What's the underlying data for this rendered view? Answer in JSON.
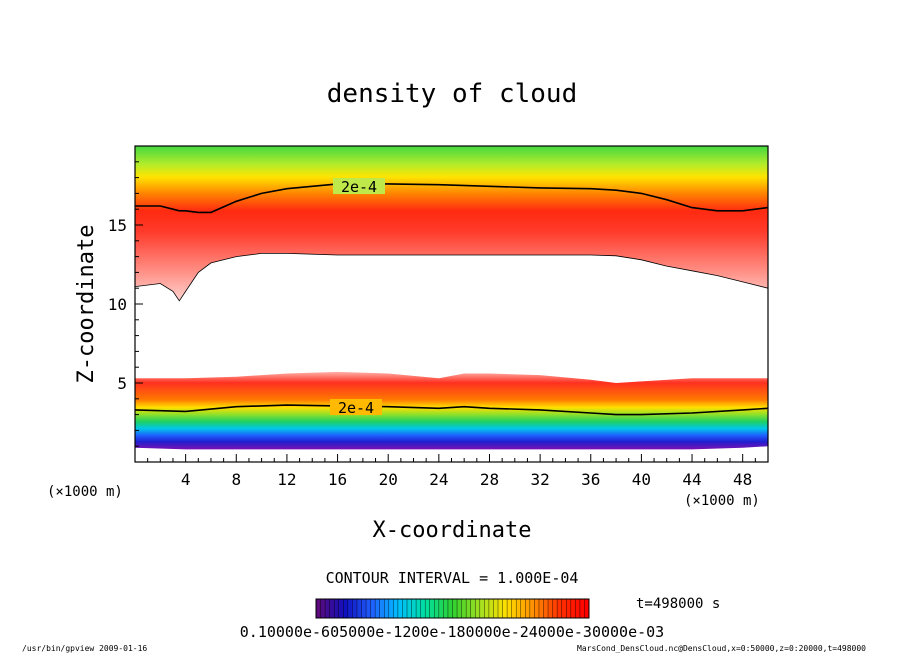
{
  "chart_data": {
    "type": "heatmap",
    "title": "density of cloud",
    "xlabel": "X-coordinate",
    "ylabel": "Z-coordinate",
    "x_unit": "(×1000 m)",
    "y_unit": "(×1000 m)",
    "xlim": [
      0,
      50
    ],
    "ylim": [
      0,
      20
    ],
    "x_ticks": [
      "4",
      "8",
      "12",
      "16",
      "20",
      "24",
      "28",
      "32",
      "36",
      "40",
      "44",
      "48"
    ],
    "y_ticks": [
      "5",
      "10",
      "15"
    ],
    "contour_labels": [
      "2e-4",
      "2e-4"
    ],
    "contour_interval": "CONTOUR INTERVAL = 1.000E-04",
    "time_label": "t=498000 s",
    "colorbar_text": "0.10000e-605000e-1200e-180000e-24000e-30000e-03",
    "colorbar_colors": [
      "#5a0a7a",
      "#1010c0",
      "#2060ff",
      "#00c0ff",
      "#00e0a0",
      "#30d030",
      "#a0e020",
      "#ffe000",
      "#ff9000",
      "#ff3000",
      "#ff0000"
    ],
    "footer_left": "/usr/bin/gpview   2009-01-16",
    "footer_right": "MarsCond_DensCloud.nc@DensCloud,x=0:50000,z=0:20000,t=498000",
    "upper_layer": {
      "x": [
        0,
        2,
        3,
        3.5,
        4,
        5,
        6,
        8,
        10,
        12,
        16,
        20,
        24,
        28,
        32,
        36,
        38,
        40,
        42,
        44,
        46,
        48,
        50
      ],
      "top_contour": [
        16.2,
        16.2,
        16.0,
        15.9,
        15.9,
        15.8,
        15.8,
        16.5,
        17.0,
        17.3,
        17.6,
        17.6,
        17.55,
        17.45,
        17.35,
        17.3,
        17.2,
        17.0,
        16.6,
        16.1,
        15.9,
        15.9,
        16.1
      ],
      "bottom": [
        11.1,
        11.3,
        10.8,
        10.2,
        10.8,
        12.0,
        12.6,
        13.0,
        13.2,
        13.2,
        13.1,
        13.1,
        13.1,
        13.1,
        13.1,
        13.1,
        13.05,
        12.8,
        12.4,
        12.1,
        11.8,
        11.4,
        11.0
      ]
    },
    "lower_layer": {
      "x": [
        0,
        4,
        8,
        12,
        16,
        20,
        24,
        26,
        28,
        32,
        36,
        38,
        40,
        44,
        48,
        50
      ],
      "top": [
        5.3,
        5.3,
        5.4,
        5.6,
        5.7,
        5.6,
        5.3,
        5.6,
        5.6,
        5.5,
        5.2,
        5.0,
        5.1,
        5.3,
        5.3,
        5.3
      ],
      "contour": [
        3.3,
        3.2,
        3.5,
        3.6,
        3.55,
        3.5,
        3.4,
        3.5,
        3.4,
        3.3,
        3.1,
        3.0,
        3.0,
        3.1,
        3.3,
        3.4
      ],
      "bottom": [
        0.9,
        0.8,
        0.8,
        0.8,
        0.8,
        0.8,
        0.8,
        0.8,
        0.8,
        0.8,
        0.8,
        0.8,
        0.8,
        0.8,
        0.9,
        1.0
      ]
    }
  }
}
